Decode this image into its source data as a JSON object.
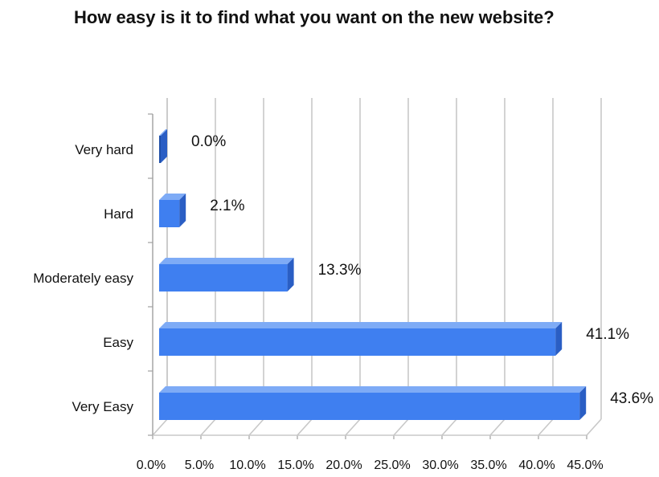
{
  "chart_data": {
    "type": "bar",
    "orientation": "horizontal",
    "style": "3d",
    "title": "How easy is it to find what you want on the new website?",
    "categories": [
      "Very hard",
      "Hard",
      "Moderately easy",
      "Easy",
      "Very Easy"
    ],
    "values": [
      0.0,
      2.1,
      13.3,
      41.1,
      43.6
    ],
    "value_labels": [
      "0.0%",
      "2.1%",
      "13.3%",
      "41.1%",
      "43.6%"
    ],
    "xlim": [
      0,
      45
    ],
    "x_ticks": [
      0,
      5,
      10,
      15,
      20,
      25,
      30,
      35,
      40,
      45
    ],
    "x_tick_labels": [
      "0.0%",
      "5.0%",
      "10.0%",
      "15.0%",
      "20.0%",
      "25.0%",
      "30.0%",
      "35.0%",
      "40.0%",
      "45.0%"
    ],
    "grid": true,
    "legend": "none",
    "colors": {
      "bar_front": "#3f7ff0",
      "bar_top": "#7eabf6",
      "bar_side": "#2a5ec4",
      "bar_dark": "#1f4fa8",
      "grid": "#c8c8c8",
      "axis": "#a0a0a0"
    }
  }
}
